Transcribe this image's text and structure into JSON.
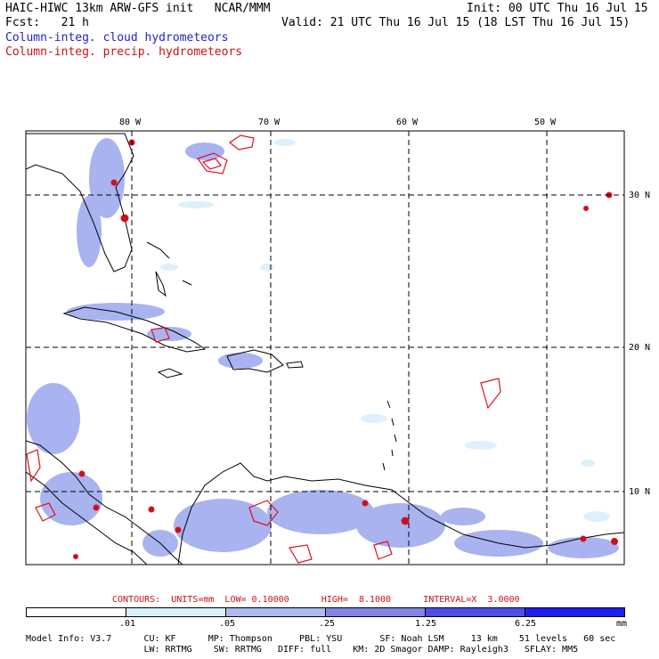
{
  "header": {
    "line1_left": "HAIC-HIWC 13km ARW-GFS init   NCAR/MMM",
    "line1_right": "Init: 00 UTC Thu 16 Jul 15",
    "line2_left": "Fcst:   21 h",
    "line2_right": "Valid: 21 UTC Thu 16 Jul 15 (18 LST Thu 16 Jul 15)",
    "field1": "Column-integ. cloud hydrometeors",
    "field2": "Column-integ. precip. hydrometeors"
  },
  "map": {
    "lon_labels": [
      "80 W",
      "70 W",
      "60 W",
      "50 W"
    ],
    "lat_labels": [
      "30 N",
      "20 N",
      "10 N"
    ]
  },
  "contours": {
    "text": "CONTOURS:  UNITS=mm  LOW= 0.10000      HIGH=  8.1000      INTERVAL=X  3.0000"
  },
  "colorbar": {
    "ticks": [
      ".01",
      ".05",
      ".25",
      "1.25",
      "6.25"
    ],
    "units": "mm",
    "colors": [
      "#ffffff",
      "#d8f0fc",
      "#aabcee",
      "#7e86e6",
      "#4e4ee6",
      "#1e1ef0"
    ]
  },
  "model_info": {
    "line1": "Model Info: V3.7      CU: KF      MP: Thompson     PBL: YSU       SF: Noah LSM     13 km    51 levels   60 sec",
    "line2": "                      LW: RRTMG    SW: RRTMG   DIFF: full    KM: 2D Smagor DAMP: Rayleigh3   SFLAY: MM5"
  },
  "style": {
    "cloud_color": "#8a9ae8",
    "precip_color": "#e01020",
    "coast_color": "#000000"
  }
}
